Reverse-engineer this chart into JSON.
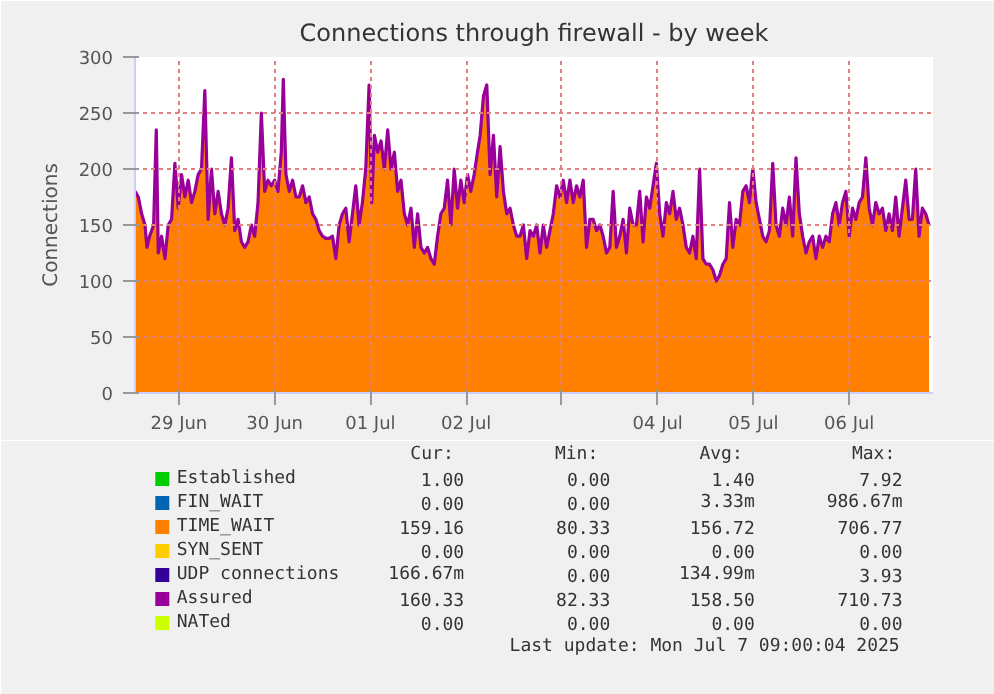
{
  "chart_data": {
    "type": "area",
    "title": "Connections through firewall - by week",
    "ylabel": "Connections",
    "xlim": [
      "2025-06-29T01:00",
      "2025-07-07T09:00"
    ],
    "ylim": [
      0,
      300
    ],
    "yticks": [
      0,
      50,
      100,
      150,
      200,
      250,
      300
    ],
    "xticks": [
      {
        "value": "2025-06-29T12:00",
        "label": "29 Jun"
      },
      {
        "value": "2025-06-30T12:00",
        "label": "30 Jun"
      },
      {
        "value": "2025-07-01T12:00",
        "label": "01 Jul"
      },
      {
        "value": "2025-07-02T12:00",
        "label": "02 Jul"
      },
      {
        "value": "2025-07-03T12:00",
        "label": null
      },
      {
        "value": "2025-07-04T12:00",
        "label": "04 Jul"
      },
      {
        "value": "2025-07-05T12:00",
        "label": "05 Jul"
      },
      {
        "value": "2025-07-06T12:00",
        "label": "06 Jul"
      }
    ],
    "grid": true,
    "legend": "bottom",
    "series": [
      {
        "name": "Established",
        "color": "#00cc00",
        "values": [
          null,
          null,
          null,
          null,
          null,
          null,
          null,
          null,
          null,
          null,
          null,
          null,
          null,
          null,
          null,
          null,
          null,
          null,
          null,
          null,
          null,
          null,
          null,
          null,
          null,
          null,
          null,
          null,
          null,
          null,
          null,
          null,
          null,
          null,
          null,
          null,
          null,
          null,
          null,
          null,
          null,
          null,
          null,
          null,
          null,
          null,
          null,
          null,
          null,
          null,
          null,
          null,
          null,
          null,
          null,
          null,
          null,
          null,
          null,
          null,
          null,
          null,
          null,
          null,
          null,
          null,
          null,
          null,
          null,
          null,
          null,
          null,
          null,
          null,
          null,
          null,
          null,
          null,
          null,
          null,
          null,
          null,
          null,
          null,
          null,
          null,
          null,
          null,
          null,
          null,
          null,
          null,
          null,
          null,
          null,
          null,
          null,
          null,
          null,
          null,
          null,
          null,
          null,
          null,
          null,
          null,
          null,
          null,
          null,
          null,
          null,
          null,
          null,
          null,
          null,
          null,
          null,
          null,
          null,
          null,
          null,
          null,
          null,
          null,
          null,
          null,
          null,
          null,
          null,
          null,
          null,
          null,
          null,
          null,
          null,
          null,
          null,
          null,
          null,
          null,
          null,
          null,
          null,
          null,
          null,
          null,
          null,
          null,
          null,
          null,
          null,
          null,
          null,
          null,
          null,
          null,
          null,
          null,
          null,
          null,
          null,
          null,
          null,
          null,
          null,
          null,
          null,
          null,
          null,
          null,
          null,
          null,
          null,
          null,
          null,
          null,
          null,
          null,
          null,
          null,
          null,
          null,
          null,
          null,
          null,
          null,
          null,
          null,
          null,
          null,
          null,
          null,
          null,
          null,
          null,
          null,
          null,
          null,
          null,
          null,
          null,
          null,
          null,
          null,
          null,
          null,
          null,
          null,
          null,
          null,
          null,
          null,
          null,
          null,
          null,
          null,
          null,
          null,
          null,
          null,
          null,
          null,
          null,
          null,
          null,
          null,
          null,
          null,
          null,
          null,
          null,
          null,
          null,
          null,
          null,
          null,
          null,
          null,
          null,
          null,
          null,
          null
        ]
      },
      {
        "name": "FIN_WAIT",
        "color": "#0066b3",
        "values": [
          null,
          null,
          null,
          null,
          null,
          null,
          null,
          null,
          null,
          null,
          null,
          null,
          null,
          null,
          null,
          null,
          null,
          null,
          null,
          null,
          null,
          null,
          null,
          null,
          null,
          null,
          null,
          null,
          null,
          null,
          null,
          null,
          null,
          null,
          null,
          null,
          null,
          null,
          null,
          null,
          null,
          null,
          null,
          null,
          null,
          null,
          null,
          null,
          null,
          null,
          null,
          null,
          null,
          null,
          null,
          null,
          null,
          null,
          null,
          null,
          null,
          null,
          null,
          null,
          null,
          null,
          null,
          null,
          null,
          null,
          null,
          null,
          null,
          null,
          null,
          null,
          null,
          null,
          null,
          null,
          null,
          null,
          null,
          null,
          null,
          null,
          null,
          null,
          null,
          null,
          null,
          null,
          null,
          null,
          null,
          null,
          null,
          null,
          null,
          null,
          null,
          null,
          null,
          null,
          null,
          null,
          null,
          null,
          null,
          null,
          null,
          null,
          null,
          null,
          null,
          null,
          null,
          null,
          null,
          null,
          null,
          null,
          null,
          null,
          null,
          null,
          null,
          null,
          null,
          null,
          null,
          null,
          null,
          null,
          null,
          null,
          null,
          null,
          null,
          null,
          null,
          null,
          null,
          null,
          null,
          null,
          null,
          null,
          null,
          null,
          null,
          null,
          null,
          null,
          null,
          null,
          null,
          null,
          null,
          null,
          null,
          null,
          null,
          null,
          null,
          null,
          null,
          null,
          null,
          null,
          null,
          null,
          null,
          null,
          null,
          null,
          null,
          null,
          null,
          null,
          null,
          null,
          null,
          null,
          null,
          null,
          null,
          null,
          null,
          null,
          null,
          null,
          null,
          null,
          null,
          null,
          null,
          null,
          null,
          null,
          null,
          null,
          null,
          null,
          null,
          null,
          null,
          null,
          null,
          null,
          null,
          null,
          null,
          null,
          null,
          null,
          null,
          null,
          null,
          null,
          null,
          null,
          null,
          null,
          null,
          null,
          null,
          null,
          null,
          null,
          null,
          null,
          null,
          null,
          null,
          null,
          null,
          null,
          null,
          null,
          null,
          null
        ]
      },
      {
        "name": "TIME_WAIT",
        "color": "#ff8000",
        "values": [
          180,
          175,
          160,
          150,
          130,
          140,
          150,
          235,
          125,
          140,
          120,
          150,
          155,
          205,
          165,
          195,
          175,
          190,
          170,
          180,
          195,
          200,
          270,
          155,
          200,
          160,
          180,
          160,
          150,
          165,
          210,
          145,
          155,
          135,
          130,
          135,
          150,
          140,
          170,
          250,
          180,
          190,
          185,
          190,
          180,
          215,
          280,
          195,
          180,
          190,
          175,
          175,
          185,
          170,
          175,
          160,
          155,
          145,
          140,
          138,
          138,
          140,
          120,
          150,
          160,
          165,
          135,
          160,
          185,
          150,
          170,
          200,
          275,
          170,
          230,
          215,
          225,
          200,
          235,
          200,
          215,
          180,
          190,
          160,
          150,
          165,
          130,
          160,
          130,
          125,
          130,
          120,
          115,
          140,
          160,
          165,
          190,
          150,
          200,
          165,
          190,
          170,
          195,
          180,
          195,
          215,
          230,
          265,
          275,
          195,
          230,
          175,
          220,
          180,
          160,
          165,
          150,
          140,
          140,
          150,
          120,
          145,
          140,
          150,
          125,
          150,
          130,
          145,
          160,
          185,
          175,
          190,
          170,
          190,
          170,
          185,
          175,
          190,
          130,
          155,
          155,
          145,
          150,
          140,
          125,
          130,
          180,
          130,
          140,
          155,
          125,
          165,
          150,
          150,
          180,
          135,
          175,
          165,
          185,
          205,
          160,
          140,
          170,
          160,
          180,
          155,
          165,
          150,
          130,
          125,
          140,
          120,
          200,
          120,
          115,
          115,
          110,
          100,
          105,
          115,
          120,
          170,
          130,
          155,
          150,
          180,
          185,
          170,
          200,
          170,
          155,
          140,
          135,
          145,
          205,
          150,
          140,
          165,
          150,
          175,
          140,
          210,
          160,
          140,
          125,
          135,
          140,
          120,
          140,
          130,
          140,
          135,
          160,
          170,
          150,
          170,
          180,
          140,
          165,
          155,
          170,
          175,
          210,
          165,
          150,
          170,
          160,
          165,
          145,
          160,
          145,
          175,
          140,
          165,
          190,
          155,
          155,
          200,
          140,
          165,
          160,
          150
        ]
      },
      {
        "name": "SYN_SENT",
        "color": "#ffcc00",
        "values": [
          null,
          null,
          null,
          null,
          null,
          null,
          null,
          null,
          null,
          null,
          null,
          null,
          null,
          null,
          null,
          null,
          null,
          null,
          null,
          null,
          null,
          null,
          null,
          null,
          null,
          null,
          null,
          null,
          null,
          null,
          null,
          null,
          null,
          null,
          null,
          null,
          null,
          null,
          null,
          null,
          null,
          null,
          null,
          null,
          null,
          null,
          null,
          null,
          null,
          null,
          null,
          null,
          null,
          null,
          null,
          null,
          null,
          null,
          null,
          null,
          null,
          null,
          null,
          null,
          null,
          null,
          null,
          null,
          null,
          null,
          null,
          null,
          null,
          null,
          null,
          null,
          null,
          null,
          null,
          null,
          null,
          null,
          null,
          null,
          null,
          null,
          null,
          null,
          null,
          null,
          null,
          null,
          null,
          null,
          null,
          null,
          null,
          null,
          null,
          null,
          null,
          null,
          null,
          null,
          null,
          null,
          null,
          null,
          null,
          null,
          null,
          null,
          null,
          null,
          null,
          null,
          null,
          null,
          null,
          null,
          null,
          null,
          null,
          null,
          null,
          null,
          null,
          null,
          null,
          null,
          null,
          null,
          null,
          null,
          null,
          null,
          null,
          null,
          null,
          null,
          null,
          null,
          null,
          null,
          null,
          null,
          null,
          null,
          null,
          null,
          null,
          null,
          null,
          null,
          null,
          null,
          null,
          null,
          null,
          null,
          null,
          null,
          null,
          null,
          null,
          null,
          null,
          null,
          null,
          null,
          null,
          null,
          null,
          null,
          null,
          null,
          null,
          null,
          null,
          null,
          null,
          null,
          null,
          null,
          null,
          null,
          null,
          null,
          null,
          null,
          null,
          null,
          null,
          null,
          null,
          null,
          null,
          null,
          null,
          null,
          null,
          null,
          null,
          null,
          null,
          null,
          null,
          null,
          null,
          null,
          null,
          null,
          null,
          null,
          null,
          null,
          null,
          null,
          null,
          null,
          null,
          null,
          null,
          null,
          null,
          null,
          null,
          null,
          null,
          null,
          null,
          null,
          null,
          null,
          null,
          null,
          null,
          null,
          null,
          null,
          null,
          null
        ]
      },
      {
        "name": "UDP connections",
        "color": "#330099",
        "values": [
          null,
          null,
          null,
          null,
          null,
          null,
          null,
          null,
          null,
          null,
          null,
          null,
          null,
          null,
          null,
          null,
          null,
          null,
          null,
          null,
          null,
          null,
          null,
          null,
          null,
          null,
          null,
          null,
          null,
          null,
          null,
          null,
          null,
          null,
          null,
          null,
          null,
          null,
          null,
          null,
          null,
          null,
          null,
          null,
          null,
          null,
          null,
          null,
          null,
          null,
          null,
          null,
          null,
          null,
          null,
          null,
          null,
          null,
          null,
          null,
          null,
          null,
          null,
          null,
          null,
          null,
          null,
          null,
          null,
          null,
          null,
          null,
          null,
          null,
          null,
          null,
          null,
          null,
          null,
          null,
          null,
          null,
          null,
          null,
          null,
          null,
          null,
          null,
          null,
          null,
          null,
          null,
          null,
          null,
          null,
          null,
          null,
          null,
          null,
          null,
          null,
          null,
          null,
          null,
          null,
          null,
          null,
          null,
          null,
          null,
          null,
          null,
          null,
          null,
          null,
          null,
          null,
          null,
          null,
          null,
          null,
          null,
          null,
          null,
          null,
          null,
          null,
          null,
          null,
          null,
          null,
          null,
          null,
          null,
          null,
          null,
          null,
          null,
          null,
          null,
          null,
          null,
          null,
          null,
          null,
          null,
          null,
          null,
          null,
          null,
          null,
          null,
          null,
          null,
          null,
          null,
          null,
          null,
          null,
          null,
          null,
          null,
          null,
          null,
          null,
          null,
          null,
          null,
          null,
          null,
          null,
          null,
          null,
          null,
          null,
          null,
          null,
          null,
          null,
          null,
          null,
          null,
          null,
          null,
          null,
          null,
          null,
          null,
          null,
          null,
          null,
          null,
          null,
          null,
          null,
          null,
          null,
          null,
          null,
          null,
          null,
          null,
          null,
          null,
          null,
          null,
          null,
          null,
          null,
          null,
          null,
          null,
          null,
          null,
          null,
          null,
          null,
          null,
          null,
          null,
          null,
          null,
          null,
          null,
          null,
          null,
          null,
          null,
          null,
          null,
          null,
          null,
          null,
          null,
          null,
          null,
          null,
          null,
          null,
          null,
          null,
          null
        ]
      },
      {
        "name": "Assured",
        "color": "#990099",
        "type": "line",
        "values": [
          180,
          175,
          160,
          150,
          130,
          140,
          150,
          235,
          125,
          140,
          120,
          150,
          155,
          205,
          165,
          195,
          175,
          190,
          170,
          180,
          195,
          200,
          270,
          155,
          200,
          160,
          180,
          160,
          150,
          165,
          210,
          145,
          155,
          135,
          130,
          135,
          150,
          140,
          170,
          250,
          180,
          190,
          185,
          190,
          180,
          215,
          280,
          195,
          180,
          190,
          175,
          175,
          185,
          170,
          175,
          160,
          155,
          145,
          140,
          138,
          138,
          140,
          120,
          150,
          160,
          165,
          135,
          160,
          185,
          150,
          170,
          200,
          275,
          170,
          230,
          215,
          225,
          200,
          235,
          200,
          215,
          180,
          190,
          160,
          150,
          165,
          130,
          160,
          130,
          125,
          130,
          120,
          115,
          140,
          160,
          165,
          190,
          150,
          200,
          165,
          190,
          170,
          195,
          180,
          195,
          215,
          230,
          265,
          275,
          195,
          230,
          175,
          220,
          180,
          160,
          165,
          150,
          140,
          140,
          150,
          120,
          145,
          140,
          150,
          125,
          150,
          130,
          145,
          160,
          185,
          175,
          190,
          170,
          190,
          170,
          185,
          175,
          190,
          130,
          155,
          155,
          145,
          150,
          140,
          125,
          130,
          180,
          130,
          140,
          155,
          125,
          165,
          150,
          150,
          180,
          135,
          175,
          165,
          185,
          205,
          160,
          140,
          170,
          160,
          180,
          155,
          165,
          150,
          130,
          125,
          140,
          120,
          200,
          120,
          115,
          115,
          110,
          100,
          105,
          115,
          120,
          170,
          130,
          155,
          150,
          180,
          185,
          170,
          200,
          170,
          155,
          140,
          135,
          145,
          205,
          150,
          140,
          165,
          150,
          175,
          140,
          210,
          160,
          140,
          125,
          135,
          140,
          120,
          140,
          130,
          140,
          135,
          160,
          170,
          150,
          170,
          180,
          140,
          165,
          155,
          170,
          175,
          210,
          165,
          150,
          170,
          160,
          165,
          145,
          160,
          145,
          175,
          140,
          165,
          190,
          155,
          155,
          200,
          140,
          165,
          160,
          150
        ]
      },
      {
        "name": "NATed",
        "color": "#ccff00",
        "values": [
          null,
          null,
          null,
          null,
          null,
          null,
          null,
          null,
          null,
          null,
          null,
          null,
          null,
          null,
          null,
          null,
          null,
          null,
          null,
          null,
          null,
          null,
          null,
          null,
          null,
          null,
          null,
          null,
          null,
          null,
          null,
          null,
          null,
          null,
          null,
          null,
          null,
          null,
          null,
          null,
          null,
          null,
          null,
          null,
          null,
          null,
          null,
          null,
          null,
          null,
          null,
          null,
          null,
          null,
          null,
          null,
          null,
          null,
          null,
          null,
          null,
          null,
          null,
          null,
          null,
          null,
          null,
          null,
          null,
          null,
          null,
          null,
          null,
          null,
          null,
          null,
          null,
          null,
          null,
          null,
          null,
          null,
          null,
          null,
          null,
          null,
          null,
          null,
          null,
          null,
          null,
          null,
          null,
          null,
          null,
          null,
          null,
          null,
          null,
          null,
          null,
          null,
          null,
          null,
          null,
          null,
          null,
          null,
          null,
          null,
          null,
          null,
          null,
          null,
          null,
          null,
          null,
          null,
          null,
          null,
          null,
          null,
          null,
          null,
          null,
          null,
          null,
          null,
          null,
          null,
          null,
          null,
          null,
          null,
          null,
          null,
          null,
          null,
          null,
          null,
          null,
          null,
          null,
          null,
          null,
          null,
          null,
          null,
          null,
          null,
          null,
          null,
          null,
          null,
          null,
          null,
          null,
          null,
          null,
          null,
          null,
          null,
          null,
          null,
          null,
          null,
          null,
          null,
          null,
          null,
          null,
          null,
          null,
          null,
          null,
          null,
          null,
          null,
          null,
          null,
          null,
          null,
          null,
          null,
          null,
          null,
          null,
          null,
          null,
          null,
          null,
          null,
          null,
          null,
          null,
          null,
          null,
          null,
          null,
          null,
          null,
          null,
          null,
          null,
          null,
          null,
          null,
          null,
          null,
          null,
          null,
          null,
          null,
          null,
          null,
          null,
          null,
          null,
          null,
          null,
          null,
          null,
          null,
          null,
          null,
          null,
          null,
          null,
          null,
          null,
          null,
          null,
          null,
          null,
          null,
          null,
          null,
          null,
          null,
          null,
          null,
          null
        ]
      }
    ],
    "x": [
      "2025-06-29T01:00",
      "2025-06-29T01:50",
      "2025-06-29T02:40",
      "2025-06-29T03:30",
      "2025-06-29T04:00",
      "2025-06-29T04:40",
      "2025-06-29T05:40",
      "2025-06-29T06:20",
      "2025-06-29T06:50",
      "2025-06-29T07:40",
      "2025-06-29T08:30",
      "2025-06-29T09:20",
      "2025-06-29T10:10",
      "2025-06-29T11:00",
      "2025-06-29T11:50",
      "2025-06-29T12:40",
      "2025-06-29T13:30",
      "2025-06-29T14:20",
      "2025-06-29T15:10",
      "2025-06-29T16:00",
      "2025-06-29T16:50",
      "2025-06-29T17:40",
      "2025-06-29T18:30",
      "2025-06-29T19:20",
      "2025-06-29T20:10",
      "2025-06-29T21:00",
      "2025-06-29T21:50",
      "2025-06-29T22:40",
      "2025-06-29T23:30",
      "2025-06-30T00:20",
      "2025-06-30T01:10",
      "2025-06-30T02:00",
      "2025-06-30T02:50",
      "2025-06-30T03:40",
      "2025-06-30T04:30",
      "2025-06-30T05:20",
      "2025-06-30T06:10",
      "2025-06-30T07:00",
      "2025-06-30T07:50",
      "2025-06-30T08:40",
      "2025-06-30T09:30",
      "2025-06-30T10:20",
      "2025-06-30T11:10",
      "2025-06-30T12:00",
      "2025-06-30T12:50",
      "2025-06-30T13:40",
      "2025-06-30T14:10",
      "2025-06-30T14:50",
      "2025-06-30T15:40",
      "2025-06-30T16:30",
      "2025-06-30T17:20",
      "2025-06-30T18:10",
      "2025-06-30T19:00",
      "2025-06-30T19:50",
      "2025-06-30T20:40",
      "2025-06-30T21:30",
      "2025-06-30T22:20",
      "2025-06-30T23:10",
      "2025-07-01T00:00",
      "2025-07-01T00:50",
      "2025-07-01T01:40",
      "2025-07-01T02:30",
      "2025-07-01T03:20",
      "2025-07-01T04:10",
      "2025-07-01T05:00",
      "2025-07-01T05:50",
      "2025-07-01T06:40",
      "2025-07-01T07:30",
      "2025-07-01T08:20",
      "2025-07-01T09:10",
      "2025-07-01T10:00",
      "2025-07-01T10:50",
      "2025-07-01T11:40",
      "2025-07-01T12:20",
      "2025-07-01T13:00",
      "2025-07-01T13:50",
      "2025-07-01T14:40",
      "2025-07-01T15:30",
      "2025-07-01T16:20",
      "2025-07-01T17:10",
      "2025-07-01T18:00",
      "2025-07-01T18:50",
      "2025-07-01T19:40",
      "2025-07-01T20:30",
      "2025-07-01T21:20",
      "2025-07-01T22:10",
      "2025-07-01T23:00",
      "2025-07-01T23:50",
      "2025-07-02T00:40",
      "2025-07-02T01:30",
      "2025-07-02T02:20",
      "2025-07-02T03:10",
      "2025-07-02T04:00",
      "2025-07-02T04:50",
      "2025-07-02T05:40",
      "2025-07-02T06:30",
      "2025-07-02T07:20",
      "2025-07-02T08:10",
      "2025-07-02T09:00",
      "2025-07-02T09:50",
      "2025-07-02T10:40",
      "2025-07-02T11:30",
      "2025-07-02T12:20",
      "2025-07-02T13:10",
      "2025-07-02T14:00",
      "2025-07-02T14:50",
      "2025-07-02T15:30",
      "2025-07-02T16:20",
      "2025-07-02T17:10",
      "2025-07-02T18:00",
      "2025-07-02T18:50",
      "2025-07-02T19:40",
      "2025-07-02T20:30",
      "2025-07-02T21:20",
      "2025-07-02T22:10",
      "2025-07-02T23:00",
      "2025-07-02T23:50",
      "2025-07-03T00:40",
      "2025-07-03T01:30",
      "2025-07-03T02:20",
      "2025-07-03T03:10",
      "2025-07-03T04:00",
      "2025-07-03T04:50",
      "2025-07-03T05:40",
      "2025-07-03T06:30",
      "2025-07-03T07:20",
      "2025-07-03T08:10",
      "2025-07-03T09:00",
      "2025-07-03T09:50",
      "2025-07-03T10:40",
      "2025-07-03T11:30",
      "2025-07-03T12:20",
      "2025-07-03T13:10",
      "2025-07-03T14:00",
      "2025-07-03T14:50",
      "2025-07-03T15:40",
      "2025-07-03T16:30",
      "2025-07-03T17:20",
      "2025-07-03T18:10",
      "2025-07-03T19:00",
      "2025-07-03T19:50",
      "2025-07-03T20:40",
      "2025-07-03T21:30",
      "2025-07-03T22:20",
      "2025-07-03T23:10",
      "2025-07-04T00:00",
      "2025-07-04T00:50",
      "2025-07-04T01:40",
      "2025-07-04T02:30",
      "2025-07-04T03:20",
      "2025-07-04T04:10",
      "2025-07-04T05:00",
      "2025-07-04T05:50",
      "2025-07-04T06:40",
      "2025-07-04T07:30",
      "2025-07-04T08:20",
      "2025-07-04T09:10",
      "2025-07-04T10:00",
      "2025-07-04T10:50",
      "2025-07-04T11:40",
      "2025-07-04T12:30",
      "2025-07-04T13:20",
      "2025-07-04T14:10",
      "2025-07-04T15:00",
      "2025-07-04T15:50",
      "2025-07-04T16:40",
      "2025-07-04T17:30",
      "2025-07-04T18:20",
      "2025-07-04T19:10",
      "2025-07-04T20:00",
      "2025-07-04T20:50",
      "2025-07-04T21:40",
      "2025-07-04T22:30",
      "2025-07-04T23:20",
      "2025-07-05T00:10",
      "2025-07-05T01:00",
      "2025-07-05T01:50",
      "2025-07-05T02:40",
      "2025-07-05T03:30",
      "2025-07-05T04:20",
      "2025-07-05T05:10",
      "2025-07-05T06:00",
      "2025-07-05T06:50",
      "2025-07-05T07:40",
      "2025-07-05T08:30",
      "2025-07-05T09:20",
      "2025-07-05T10:10",
      "2025-07-05T11:00",
      "2025-07-05T11:50",
      "2025-07-05T12:40",
      "2025-07-05T13:30",
      "2025-07-05T14:20",
      "2025-07-05T15:10",
      "2025-07-05T16:00",
      "2025-07-05T16:50",
      "2025-07-05T17:40",
      "2025-07-05T18:30",
      "2025-07-05T19:20",
      "2025-07-05T20:10",
      "2025-07-05T21:00",
      "2025-07-05T21:50",
      "2025-07-05T22:40",
      "2025-07-05T23:30",
      "2025-07-06T00:20",
      "2025-07-06T01:10",
      "2025-07-06T02:00",
      "2025-07-06T02:50",
      "2025-07-06T03:40",
      "2025-07-06T04:30",
      "2025-07-06T05:20",
      "2025-07-06T06:10",
      "2025-07-06T07:00",
      "2025-07-06T07:50",
      "2025-07-06T08:40",
      "2025-07-06T09:30",
      "2025-07-06T10:20",
      "2025-07-06T11:10",
      "2025-07-06T12:00",
      "2025-07-06T12:50",
      "2025-07-06T13:40",
      "2025-07-06T14:30",
      "2025-07-06T15:20",
      "2025-07-06T16:10",
      "2025-07-06T17:00",
      "2025-07-06T17:50",
      "2025-07-06T18:40",
      "2025-07-06T19:30",
      "2025-07-06T20:20",
      "2025-07-06T21:10",
      "2025-07-06T22:00",
      "2025-07-06T22:50",
      "2025-07-06T23:40",
      "2025-07-07T00:30",
      "2025-07-07T01:20",
      "2025-07-07T02:10",
      "2025-07-07T03:00",
      "2025-07-07T03:50",
      "2025-07-07T04:40",
      "2025-07-07T05:30",
      "2025-07-07T06:20",
      "2025-07-07T07:10",
      "2025-07-07T08:00"
    ],
    "annotations": [
      "Cur:",
      "Min:",
      "Avg:",
      "Max:",
      "1.00",
      "0.00",
      "1.40",
      "7.92",
      "0.00",
      "0.00",
      "3.33m",
      "986.67m",
      "159.16",
      "80.33",
      "156.72",
      "706.77",
      "0.00",
      "0.00",
      "0.00",
      "0.00",
      "166.67m",
      "0.00",
      "134.99m",
      "3.93",
      "160.33",
      "82.33",
      "158.50",
      "710.73",
      "0.00",
      "0.00",
      "0.00",
      "0.00",
      "Last update: Mon Jul  7 09:00:04 2025"
    ]
  }
}
